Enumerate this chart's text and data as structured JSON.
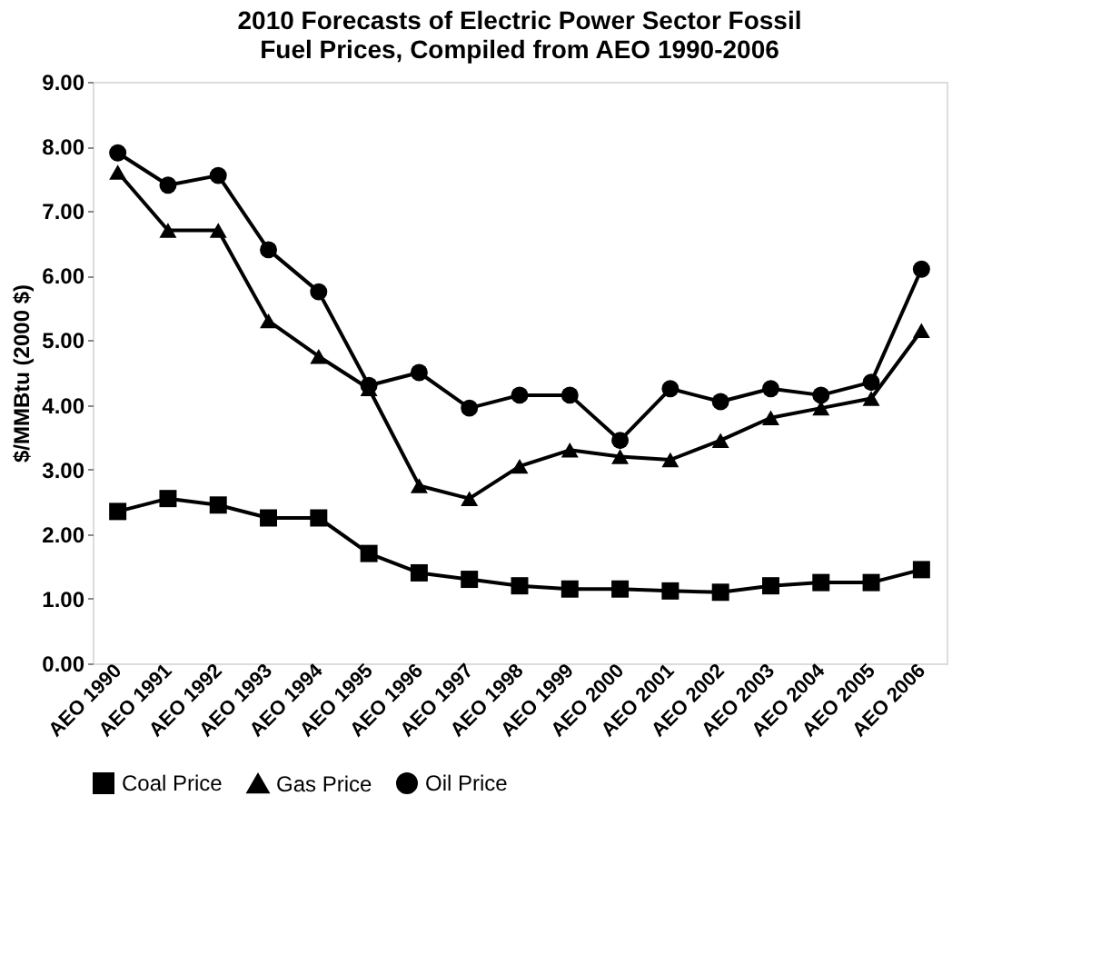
{
  "chart_data": {
    "type": "line",
    "title": "2010 Forecasts of Electric Power Sector Fossil Fuel Prices, Compiled from AEO 1990-2006",
    "ylabel": "$/MMBtu (2000 $)",
    "categories": [
      "AEO 1990",
      "AEO 1991",
      "AEO 1992",
      "AEO 1993",
      "AEO 1994",
      "AEO 1995",
      "AEO 1996",
      "AEO 1997",
      "AEO 1998",
      "AEO 1999",
      "AEO 2000",
      "AEO 2001",
      "AEO 2002",
      "AEO 2003",
      "AEO 2004",
      "AEO 2005",
      "AEO 2006"
    ],
    "series": [
      {
        "name": "Coal Price",
        "color": "#000000",
        "marker": "square",
        "values": [
          2.35,
          2.55,
          2.45,
          2.25,
          2.25,
          1.7,
          1.4,
          1.3,
          1.2,
          1.15,
          1.15,
          1.12,
          1.1,
          1.2,
          1.25,
          1.25,
          1.45
        ]
      },
      {
        "name": "Gas Price",
        "color": "#000000",
        "marker": "triangle",
        "values": [
          7.6,
          6.7,
          6.7,
          5.3,
          4.75,
          4.25,
          2.75,
          2.55,
          3.05,
          3.3,
          3.2,
          3.15,
          3.45,
          3.8,
          3.95,
          4.1,
          5.15
        ]
      },
      {
        "name": "Oil Price",
        "color": "#000000",
        "marker": "circle",
        "values": [
          7.9,
          7.4,
          7.55,
          6.4,
          5.75,
          4.3,
          4.5,
          3.95,
          4.15,
          4.15,
          3.45,
          4.25,
          4.05,
          4.25,
          4.15,
          4.35,
          6.1
        ]
      }
    ],
    "ylim": [
      0,
      9
    ],
    "yticks": [
      {
        "value": 0,
        "label": "0.00"
      },
      {
        "value": 1,
        "label": "1.00"
      },
      {
        "value": 2,
        "label": "2.00"
      },
      {
        "value": 3,
        "label": "3.00"
      },
      {
        "value": 4,
        "label": "4.00"
      },
      {
        "value": 5,
        "label": "5.00"
      },
      {
        "value": 6,
        "label": "6.00"
      },
      {
        "value": 7,
        "label": "7.00"
      },
      {
        "value": 8,
        "label": "8.00"
      },
      {
        "value": 9,
        "label": "9.00"
      }
    ],
    "legend": "bottom",
    "line_style": "solid"
  }
}
